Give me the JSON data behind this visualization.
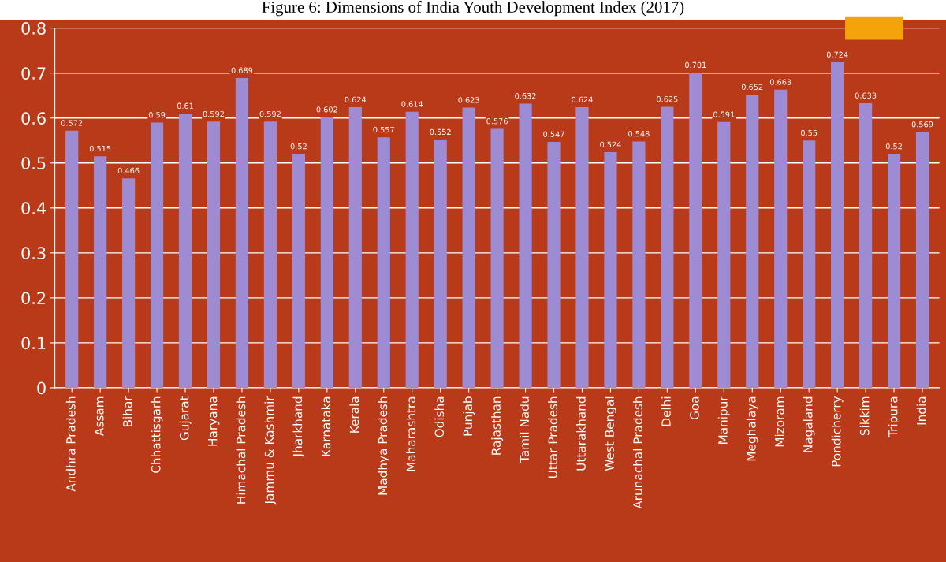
{
  "chart_data": {
    "type": "bar",
    "title": "Figure 6: Dimensions of India Youth Development Index (2017)",
    "categories": [
      "Andhra Pradesh",
      "Assam",
      "Bihar",
      "Chhattisgarh",
      "Gujarat",
      "Haryana",
      "Himachal Pradesh",
      "Jammu & Kashmir",
      "Jharkhand",
      "Karnataka",
      "Kerala",
      "Madhya Pradesh",
      "Maharashtra",
      "Odisha",
      "Punjab",
      "Rajasthan",
      "Tamil Nadu",
      "Uttar Pradesh",
      "Uttarakhand",
      "West Bengal",
      "Arunachal Pradesh",
      "Delhi",
      "Goa",
      "Manipur",
      "Meghalaya",
      "Mizoram",
      "Nagaland",
      "Pondicherry",
      "Sikkim",
      "Tripura",
      "India"
    ],
    "values": [
      0.572,
      0.515,
      0.466,
      0.59,
      0.61,
      0.592,
      0.689,
      0.592,
      0.52,
      0.602,
      0.624,
      0.557,
      0.614,
      0.552,
      0.623,
      0.576,
      0.632,
      0.547,
      0.624,
      0.524,
      0.548,
      0.625,
      0.701,
      0.591,
      0.652,
      0.663,
      0.55,
      0.724,
      0.633,
      0.52,
      0.569
    ],
    "color": "#9d8bd3",
    "ylim": [
      0,
      0.8
    ],
    "yticks": [
      0,
      0.1,
      0.2,
      0.3,
      0.4,
      0.5,
      0.6,
      0.7,
      0.8
    ],
    "grid": "y",
    "data_labels": true
  }
}
